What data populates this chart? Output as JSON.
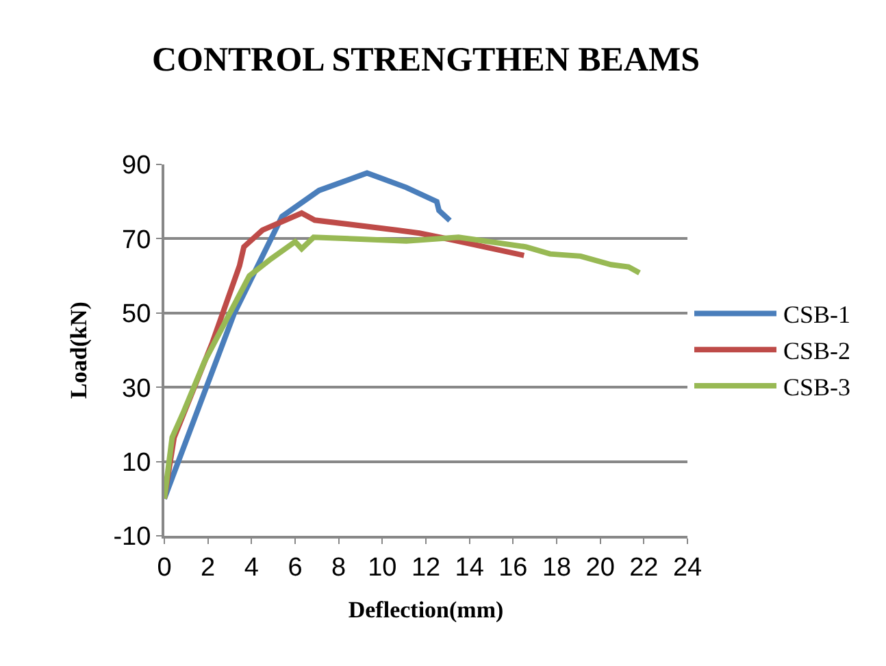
{
  "chart_data": {
    "type": "line",
    "title": "CONTROL STRENGTHEN BEAMS",
    "xlabel": "Deflection(mm)",
    "ylabel": "Load(kN)",
    "xlim": [
      0,
      24
    ],
    "xticks": [
      0,
      2,
      4,
      6,
      8,
      10,
      12,
      14,
      16,
      18,
      20,
      22,
      24
    ],
    "ylim": [
      -10,
      90
    ],
    "yticks": [
      -10,
      10,
      30,
      50,
      70,
      90
    ],
    "grid": "y",
    "legend": "right",
    "marker": "none",
    "line_style": "solid",
    "series": [
      {
        "name": "CSB-1",
        "color": "#4a7ebb",
        "x": [
          0,
          3.2,
          5.4,
          7.1,
          9.3,
          11.1,
          12.5,
          12.6,
          13.1
        ],
        "values": [
          0,
          49.8,
          76,
          83,
          87.7,
          83.8,
          80,
          77.6,
          74.9
        ]
      },
      {
        "name": "CSB-2",
        "color": "#be4b48",
        "x": [
          0,
          0.45,
          2.2,
          3.45,
          3.65,
          4.5,
          6.3,
          6.9,
          10.7,
          11.7,
          13.2,
          16.5
        ],
        "values": [
          0,
          16.5,
          42,
          62.7,
          67.8,
          72.3,
          76.9,
          75,
          72.3,
          71.5,
          69.7,
          65.5
        ]
      },
      {
        "name": "CSB-3",
        "color": "#98b954",
        "x": [
          0,
          0.36,
          0.9,
          1.85,
          3.9,
          4.9,
          6.0,
          6.3,
          6.85,
          11.1,
          13.5,
          16.6,
          17.7,
          19.1,
          20.5,
          21.3,
          21.8
        ],
        "values": [
          0,
          16.5,
          23.6,
          37,
          60,
          64.6,
          69.2,
          67.3,
          70.4,
          69.4,
          70.4,
          67.8,
          65.9,
          65.3,
          63,
          62.4,
          60.8
        ]
      }
    ]
  }
}
